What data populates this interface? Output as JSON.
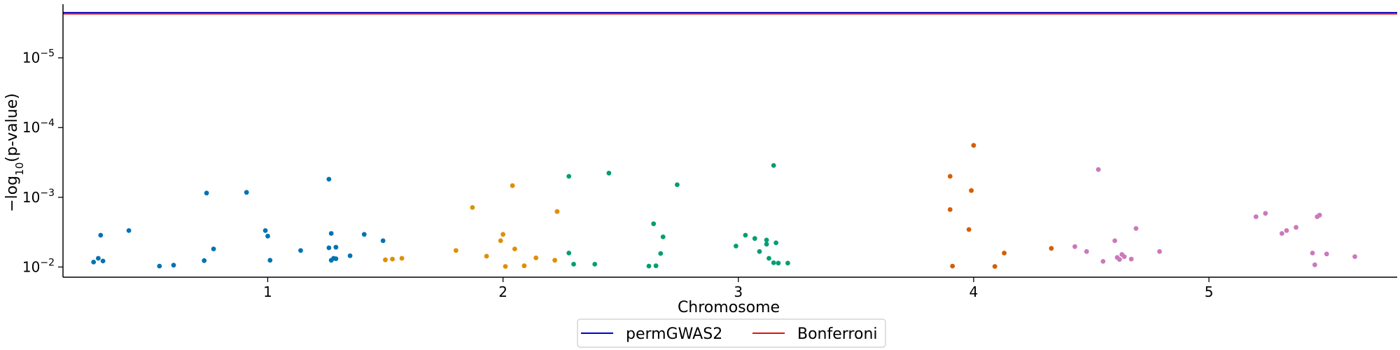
{
  "chart_data": {
    "type": "scatter",
    "title": "",
    "xlabel": "Chromosome",
    "ylabel": "−log10(p-value)",
    "yscale": "log",
    "yaxis_inverted": true,
    "xlim": [
      0.13,
      5.8
    ],
    "ylim": [
      0.014,
      1.7e-06
    ],
    "x_ticks": [
      {
        "value": 1,
        "label": "1"
      },
      {
        "value": 2,
        "label": "2"
      },
      {
        "value": 3,
        "label": "3"
      },
      {
        "value": 4,
        "label": "4"
      },
      {
        "value": 5,
        "label": "5"
      }
    ],
    "y_ticks": [
      {
        "value": 1e-05,
        "base": "10",
        "exp": "−5"
      },
      {
        "value": 0.0001,
        "base": "10",
        "exp": "−4"
      },
      {
        "value": 0.001,
        "base": "10",
        "exp": "−3"
      },
      {
        "value": 0.01,
        "base": "10",
        "exp": "−2"
      }
    ],
    "thresholds": [
      {
        "name": "permGWAS2",
        "color": "#0000cc",
        "value": 2.3e-06
      },
      {
        "name": "Bonferroni",
        "color": "#e01010",
        "value": 2.3e-06
      }
    ],
    "legend": {
      "position": "bottom-center"
    },
    "series": [
      {
        "chromosome": "1",
        "color": "#0173b2",
        "points": [
          [
            0.26,
            0.0085
          ],
          [
            0.28,
            0.0075
          ],
          [
            0.29,
            0.0035
          ],
          [
            0.3,
            0.0082
          ],
          [
            0.41,
            0.003
          ],
          [
            0.54,
            0.0097
          ],
          [
            0.6,
            0.0094
          ],
          [
            0.73,
            0.0081
          ],
          [
            0.74,
            0.00087
          ],
          [
            0.77,
            0.0055
          ],
          [
            0.91,
            0.00085
          ],
          [
            0.99,
            0.003
          ],
          [
            1.0,
            0.0036
          ],
          [
            1.01,
            0.008
          ],
          [
            1.14,
            0.0058
          ],
          [
            1.26,
            0.00055
          ],
          [
            1.26,
            0.0053
          ],
          [
            1.27,
            0.0033
          ],
          [
            1.27,
            0.008
          ],
          [
            1.28,
            0.0075
          ],
          [
            1.29,
            0.0052
          ],
          [
            1.29,
            0.0076
          ],
          [
            1.35,
            0.0069
          ],
          [
            1.41,
            0.0034
          ],
          [
            1.49,
            0.0042
          ]
        ]
      },
      {
        "chromosome": "2",
        "color": "#de8f05",
        "points": [
          [
            1.5,
            0.0079
          ],
          [
            1.53,
            0.0077
          ],
          [
            1.57,
            0.0075
          ],
          [
            1.8,
            0.0058
          ],
          [
            1.87,
            0.0014
          ],
          [
            1.93,
            0.007
          ],
          [
            1.99,
            0.0042
          ],
          [
            2.0,
            0.0034
          ],
          [
            2.01,
            0.0098
          ],
          [
            2.04,
            0.00068
          ],
          [
            2.05,
            0.0055
          ],
          [
            2.09,
            0.0096
          ],
          [
            2.14,
            0.0074
          ],
          [
            2.22,
            0.008
          ],
          [
            2.23,
            0.0016
          ]
        ]
      },
      {
        "chromosome": "3",
        "color": "#029e73",
        "points": [
          [
            2.28,
            0.0005
          ],
          [
            2.28,
            0.0063
          ],
          [
            2.3,
            0.0091
          ],
          [
            2.39,
            0.0091
          ],
          [
            2.45,
            0.00045
          ],
          [
            2.62,
            0.0097
          ],
          [
            2.64,
            0.0024
          ],
          [
            2.65,
            0.0096
          ],
          [
            2.67,
            0.0064
          ],
          [
            2.68,
            0.0037
          ],
          [
            2.74,
            0.00066
          ],
          [
            2.99,
            0.005
          ],
          [
            3.03,
            0.0035
          ],
          [
            3.07,
            0.0039
          ],
          [
            3.09,
            0.006
          ],
          [
            3.12,
            0.0041
          ],
          [
            3.12,
            0.0047
          ],
          [
            3.13,
            0.0075
          ],
          [
            3.15,
            0.0087
          ],
          [
            3.15,
            0.00035
          ],
          [
            3.16,
            0.0045
          ],
          [
            3.17,
            0.0088
          ],
          [
            3.21,
            0.0088
          ]
        ]
      },
      {
        "chromosome": "4",
        "color": "#d55e00",
        "points": [
          [
            3.9,
            0.0005
          ],
          [
            3.9,
            0.0015
          ],
          [
            3.91,
            0.0097
          ],
          [
            3.98,
            0.0029
          ],
          [
            3.99,
            0.0008
          ],
          [
            4.0,
            0.00018
          ],
          [
            4.09,
            0.0098
          ],
          [
            4.13,
            0.0063
          ],
          [
            4.33,
            0.0054
          ]
        ]
      },
      {
        "chromosome": "5",
        "color": "#cc78bc",
        "points": [
          [
            4.43,
            0.0051
          ],
          [
            4.48,
            0.006
          ],
          [
            4.53,
            0.0004
          ],
          [
            4.55,
            0.0083
          ],
          [
            4.6,
            0.0042
          ],
          [
            4.61,
            0.0073
          ],
          [
            4.62,
            0.0078
          ],
          [
            4.63,
            0.0066
          ],
          [
            4.64,
            0.0071
          ],
          [
            4.67,
            0.0077
          ],
          [
            4.69,
            0.0028
          ],
          [
            4.79,
            0.006
          ],
          [
            5.2,
            0.0019
          ],
          [
            5.24,
            0.0017
          ],
          [
            5.31,
            0.0033
          ],
          [
            5.33,
            0.003
          ],
          [
            5.37,
            0.0027
          ],
          [
            5.44,
            0.0063
          ],
          [
            5.45,
            0.0093
          ],
          [
            5.46,
            0.0019
          ],
          [
            5.47,
            0.0018
          ],
          [
            5.5,
            0.0065
          ],
          [
            5.62,
            0.0071
          ]
        ]
      }
    ]
  }
}
